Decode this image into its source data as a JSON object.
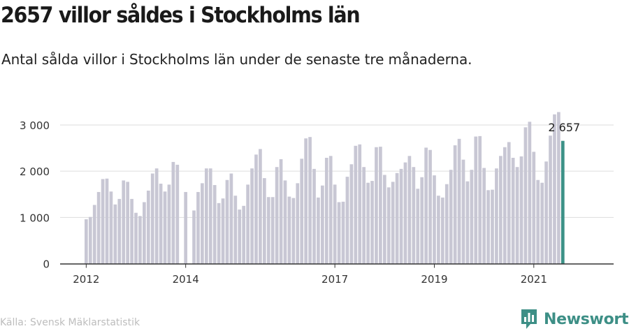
{
  "title": "2657 villor såldes i Stockholms län",
  "subtitle": "Antal sålda villor i Stockholms län under de senaste tre månaderna.",
  "source": "Källa: Svensk Mäklarstatistik",
  "brand": "Newsworthy",
  "colors": {
    "bar": "#c8c7d4",
    "highlight": "#3d9187",
    "grid": "#dddddd",
    "axis": "#333333",
    "brand": "#3d8f86"
  },
  "chart_data": {
    "type": "bar",
    "title": "2657 villor såldes i Stockholms län",
    "ylim": [
      0,
      3300
    ],
    "yticks": [
      0,
      1000,
      2000,
      3000
    ],
    "ytick_labels": [
      "0",
      "1 000",
      "2 000",
      "3 000"
    ],
    "x_start": "2012-01",
    "xtick_labels": [
      {
        "label": "2012",
        "date": "2012-01"
      },
      {
        "label": "2014",
        "date": "2014-01"
      },
      {
        "label": "2017",
        "date": "2017-01"
      },
      {
        "label": "2019",
        "date": "2019-01"
      },
      {
        "label": "2021",
        "date": "2021-01"
      }
    ],
    "highlight_label": "2 657",
    "series": [
      {
        "values": [
          960,
          1010,
          1270,
          1550,
          1830,
          1840,
          1560,
          1280,
          1400,
          1800,
          1770,
          1400,
          1100,
          1030,
          1330,
          1580,
          1950,
          2060,
          1730,
          1560,
          1710,
          2200,
          2140,
          null,
          1550,
          null,
          1150,
          1550,
          1740,
          2060,
          2060,
          1700,
          1310,
          1410,
          1810,
          1950,
          1470,
          1170,
          1250,
          1710,
          2060,
          2360,
          2480,
          1850,
          1440,
          1440,
          2090,
          2260,
          1800,
          1450,
          1420,
          1740,
          2270,
          2710,
          2740,
          2050,
          1430,
          1690,
          2290,
          2330,
          1710,
          1330,
          1340,
          1880,
          2150,
          2550,
          2580,
          2090,
          1750,
          1790,
          2520,
          2530,
          1920,
          1650,
          1770,
          1960,
          2050,
          2190,
          2330,
          2090,
          1620,
          1870,
          2510,
          2460,
          1910,
          1470,
          1430,
          1720,
          2030,
          2560,
          2700,
          2250,
          1780,
          2030,
          2750,
          2760,
          2070,
          1590,
          1600,
          2060,
          2330,
          2520,
          2630,
          2290,
          2090,
          2320,
          2950,
          3070,
          2420,
          1810,
          1750,
          2210,
          2770,
          3230,
          3280,
          2657
        ]
      }
    ]
  }
}
